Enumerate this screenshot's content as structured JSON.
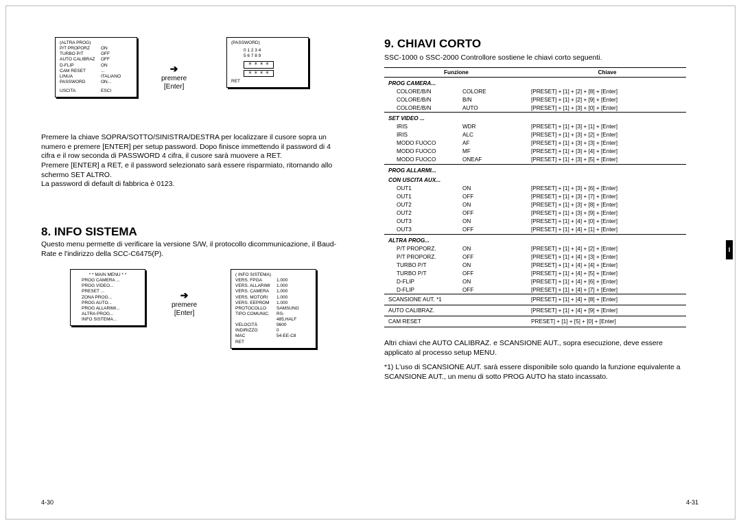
{
  "leftPage": {
    "altraProgBox": {
      "title": "(ALTRA PROG)",
      "rows": [
        [
          "P/T PROPORZ",
          "ON"
        ],
        [
          "TURBO P/T",
          "OFF"
        ],
        [
          "AUTO CALIBRAZ",
          "OFF"
        ],
        [
          "D-FLIP",
          "ON"
        ],
        [
          "CAM RESET",
          "..."
        ],
        [
          "LINUA",
          "ITALIANO"
        ],
        [
          "PASSWORD",
          "ON..."
        ]
      ],
      "footer": [
        "USCITA",
        "ESCI"
      ]
    },
    "arrow1": {
      "top": "premere",
      "bottom": "[Enter]"
    },
    "passwordBox": {
      "title": "(PASSWORD)",
      "row1": "0  1  2  3  4",
      "row2": "5  6  7  8  9",
      "stars1": "＊ ＊ ＊ ＊",
      "stars2": "＊ ＊ ＊ ＊",
      "footer": "RET"
    },
    "para1": "Premere la chiave SOPRA/SOTTO/SINISTRA/DESTRA per localizzare il cusore sopra un numero e premere [ENTER] per setup password. Dopo finisce immettendo il password di 4 cifra e il row seconda di PASSWORD 4 cifra, il cusore sarà muovere a RET.",
    "para2": "Premere [ENTER] a RET, e il password selezionato sarà essere risparmiato, ritornando allo schermo SET ALTRO.",
    "para3": "La password di default di fabbrica è 0123.",
    "heading8": "8. INFO SISTEMA",
    "para4": "Questo menu permette di verificare la versione S/W, il protocollo dicommunicazione, il Baud-Rate e l'indirizzo della SCC-C6475(P).",
    "mainMenuBox": {
      "title": "* * MAIN MENU * *",
      "rows": [
        "PROG CAMERA ...",
        "PROG VIDEO...",
        "PRESET ...",
        "ZONA PROG...",
        "PROG AUTO...",
        "PROG ALLARIMI...",
        "ALTRA PROG...",
        "INFO SISTEMA..."
      ]
    },
    "arrow2": {
      "top": "premere",
      "bottom": "[Enter]"
    },
    "infoBox": {
      "title": "( INFO SISTEMA)",
      "rows": [
        [
          "VERS. FPGA",
          "1.000"
        ],
        [
          "VERS. ALLARIMI",
          "1.000"
        ],
        [
          "VERS. CAMERA",
          "1.000"
        ],
        [
          "VERS. MOTORI",
          "1.000"
        ],
        [
          "VERS. EEPROM",
          "1.000"
        ],
        [
          "PROTOCOLLO",
          "SAMSUNG"
        ],
        [
          "TIPO COMUNIC.",
          "RS-485,HALF"
        ],
        [
          "VELOCITÀ",
          "9600"
        ],
        [
          "INDIRIZZO",
          "0"
        ],
        [
          "MAC",
          "54-EE-C8"
        ]
      ],
      "footer": "RET"
    },
    "pageNum": "4-30"
  },
  "rightPage": {
    "heading9": "9. CHIAVI CORTO",
    "intro": "SSC-1000 o SSC-2000 Controllore sostiene le chiavi corto seguenti.",
    "th1": "Funzione",
    "th2": "Chiave",
    "sections": [
      {
        "header": "PROG CAMERA...",
        "rows": [
          [
            "COLORE/B/N",
            "COLORE",
            "[PRESET] + [1] + [2] + [8] + [Enter]"
          ],
          [
            "COLORE/B/N",
            "B/N",
            "[PRESET] + [1] + [2] + [9] + [Enter]"
          ],
          [
            "COLORE/B/N",
            "AUTO",
            "[PRESET] + [1] + [3] + [0] + [Enter]"
          ]
        ]
      },
      {
        "header": "SET VIDEO ...",
        "rows": [
          [
            "IRIS",
            "WDR",
            "[PRESET] + [1] + [3] + [1] + [Enter]"
          ],
          [
            "IRIS",
            "ALC",
            "[PRESET] + [1] + [3] + [2] + [Enter]"
          ],
          [
            "MODO FUOCO",
            "AF",
            "[PRESET] + [1] + [3] + [3] + [Enter]"
          ],
          [
            "MODO FUOCO",
            "MF",
            "[PRESET] + [1] + [3] + [4] + [Enter]"
          ],
          [
            "MODO FUOCO",
            "ONEAF",
            "[PRESET] + [1] + [3] + [5] + [Enter]"
          ]
        ]
      },
      {
        "header": "PROG ALLARMI...",
        "sub": "CON USCITA AUX...",
        "rows": [
          [
            "OUT1",
            "ON",
            "[PRESET] + [1] + [3] + [6] + [Enter]"
          ],
          [
            "OUT1",
            "OFF",
            "[PRESET] + [1] + [3] + [7] + [Enter]"
          ],
          [
            "OUT2",
            "ON",
            "[PRESET] + [1] + [3] + [8] + [Enter]"
          ],
          [
            "OUT2",
            "OFF",
            "[PRESET] + [1] + [3] + [9] + [Enter]"
          ],
          [
            "OUT3",
            "ON",
            "[PRESET] + [1] + [4] + [0] + [Enter]"
          ],
          [
            "OUT3",
            "OFF",
            "[PRESET] + [1] + [4] + [1] + [Enter]"
          ]
        ]
      },
      {
        "header": "ALTRA PROG...",
        "rows": [
          [
            "P/T PROPORZ.",
            "ON",
            "[PRESET] + [1] + [4] + [2] + [Enter]"
          ],
          [
            "P/T PROPORZ.",
            "OFF",
            "[PRESET] + [1] + [4] + [3] + [Enter]"
          ],
          [
            "TURBO P/T",
            "ON",
            "[PRESET] + [1] + [4] + [4] + [Enter]"
          ],
          [
            "TURBO P/T",
            "OFF",
            "[PRESET] + [1] + [4] + [5] + [Enter]"
          ],
          [
            "D-FLIP",
            "ON",
            "[PRESET] + [1] + [4] + [6] + [Enter]"
          ],
          [
            "D-FLIP",
            "OFF",
            "[PRESET] + [1] + [4] + [7] + [Enter]"
          ]
        ]
      }
    ],
    "bottomRows": [
      [
        "SCANSIONE AUT. *1",
        "",
        "[PRESET] + [1] + [4] + [8] + [Enter]"
      ],
      [
        "AUTO CALIBRAZ.",
        "",
        "[PRESET] + [1] + [4] + [9] + [Enter]"
      ],
      [
        "CAM RESET",
        "",
        "PRESET] + [1] + [5] + [0] + [Enter]"
      ]
    ],
    "note1": "Altri chiavi che AUTO CALIBRAZ. e SCANSIONE AUT., sopra esecuzione, deve essere applicato al processo setup MENU.",
    "note2": "*1) L'uso di SCANSIONE AUT. sarà essere disponibile solo quando la funzione equivalente a SCANSIONE AUT., un menu di sotto PROG AUTO ha stato incassato.",
    "pageNum": "4-31",
    "sideTab": "I"
  }
}
